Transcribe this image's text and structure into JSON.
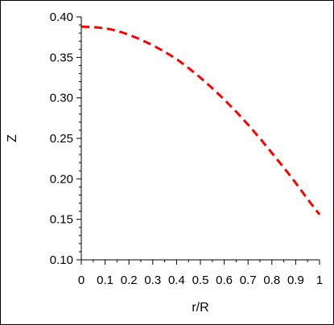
{
  "chart_data": {
    "type": "line",
    "xlabel": "r/R",
    "ylabel": "Z",
    "xlim": [
      0,
      1
    ],
    "ylim": [
      0.1,
      0.4
    ],
    "x_ticks": [
      "0",
      "0.1",
      "0.2",
      "0.3",
      "0.4",
      "0.5",
      "0.6",
      "0.7",
      "0.8",
      "0.9",
      "1"
    ],
    "y_ticks": [
      "0.10",
      "0.15",
      "0.20",
      "0.25",
      "0.30",
      "0.35",
      "0.40"
    ],
    "grid": false,
    "series": [
      {
        "color": "#ff0000",
        "line_style": "dashed",
        "x": [
          0,
          0.05,
          0.1,
          0.15,
          0.2,
          0.25,
          0.3,
          0.35,
          0.4,
          0.45,
          0.5,
          0.55,
          0.6,
          0.65,
          0.7,
          0.75,
          0.8,
          0.85,
          0.9,
          0.95,
          1.0
        ],
        "y": [
          0.388,
          0.3875,
          0.386,
          0.383,
          0.378,
          0.372,
          0.365,
          0.357,
          0.348,
          0.337,
          0.325,
          0.312,
          0.298,
          0.283,
          0.267,
          0.25,
          0.232,
          0.214,
          0.195,
          0.175,
          0.156
        ]
      }
    ]
  }
}
